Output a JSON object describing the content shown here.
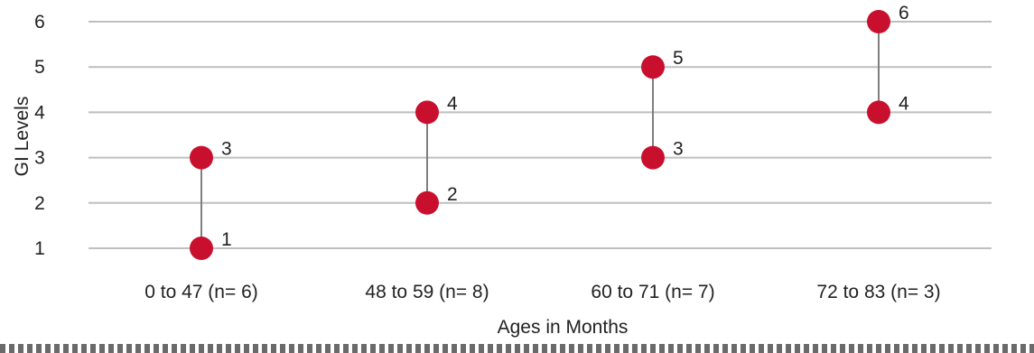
{
  "chart_data": {
    "type": "range-dot",
    "title": "",
    "xlabel": "Ages in Months",
    "ylabel": "GI Levels",
    "ylim": [
      1,
      6
    ],
    "yticks": [
      "1",
      "2",
      "3",
      "4",
      "5",
      "6"
    ],
    "grid": true,
    "categories": [
      "0 to 47 (n= 6)",
      "48 to 59 (n= 8)",
      "60 to 71 (n= 7)",
      "72 to 83 (n= 3)"
    ],
    "low": [
      1,
      2,
      3,
      4
    ],
    "high": [
      3,
      4,
      5,
      6
    ],
    "low_labels": [
      "1",
      "2",
      "3",
      "4"
    ],
    "high_labels": [
      "3",
      "4",
      "5",
      "6"
    ],
    "marker_color": "#c8102e",
    "connector_color": "#7f7f7f",
    "grid_color": "#bfbfbf"
  }
}
